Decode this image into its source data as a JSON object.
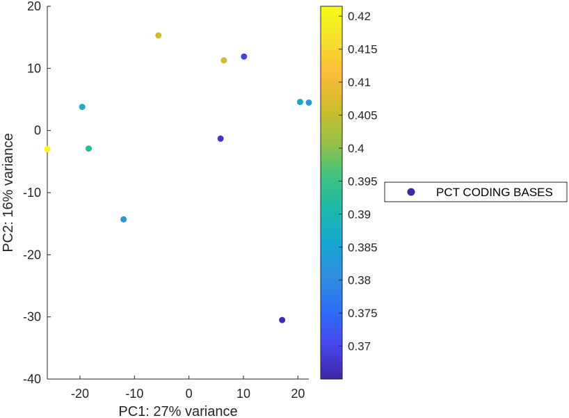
{
  "chart_data": {
    "type": "scatter",
    "xlabel": "PC1: 27% variance",
    "ylabel": "PC2: 16% variance",
    "xlim": [
      -26,
      22
    ],
    "ylim": [
      -40,
      20
    ],
    "xticks": [
      -20,
      -10,
      0,
      10,
      20
    ],
    "yticks": [
      20,
      10,
      0,
      -10,
      -20,
      -30,
      -40
    ],
    "grid": false,
    "colorbar": {
      "range": [
        0.365,
        0.4215
      ],
      "ticks": [
        0.42,
        0.415,
        0.41,
        0.405,
        0.4,
        0.395,
        0.39,
        0.385,
        0.38,
        0.375,
        0.37
      ],
      "colormap": [
        "#3e26a8",
        "#4746eb",
        "#2c6ef7",
        "#2f8de0",
        "#17a6d2",
        "#1cb8aa",
        "#40c37e",
        "#98c243",
        "#d1bb2d",
        "#fbbc3c",
        "#f5e02c",
        "#f9fb15"
      ]
    },
    "legend": {
      "placement": "right",
      "entries": [
        "PCT CODING BASES"
      ],
      "marker_color": "#3e26a8"
    },
    "points": [
      {
        "x": -26.0,
        "y": -3.0,
        "value": 0.4215
      },
      {
        "x": -19.6,
        "y": 3.8,
        "value": 0.388
      },
      {
        "x": -18.4,
        "y": -2.9,
        "value": 0.3925
      },
      {
        "x": -12.0,
        "y": -14.3,
        "value": 0.382
      },
      {
        "x": -5.6,
        "y": 15.3,
        "value": 0.4065
      },
      {
        "x": 5.8,
        "y": -1.3,
        "value": 0.3675
      },
      {
        "x": 6.4,
        "y": 11.3,
        "value": 0.406
      },
      {
        "x": 10.1,
        "y": 11.9,
        "value": 0.3695
      },
      {
        "x": 17.1,
        "y": -30.5,
        "value": 0.366
      },
      {
        "x": 20.4,
        "y": 4.6,
        "value": 0.387
      },
      {
        "x": 22.0,
        "y": 4.5,
        "value": 0.383
      }
    ]
  }
}
